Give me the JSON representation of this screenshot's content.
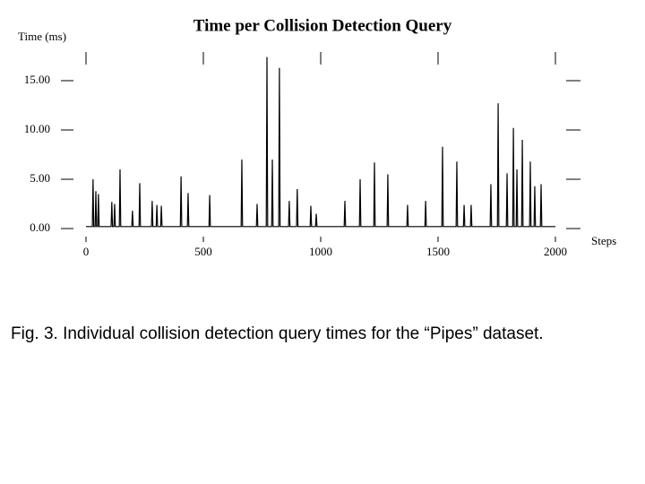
{
  "chart_data": {
    "type": "line",
    "title": "Time per Collision Detection Query",
    "y_label": "Time (ms)",
    "x_label": "Steps",
    "caption": "Fig. 3. Individual collision detection query times for the “Pipes” dataset.",
    "color": "#000000",
    "xlim": [
      0,
      2000
    ],
    "xticks": [
      0,
      500,
      1000,
      1500,
      2000
    ],
    "ylim": [
      0,
      18
    ],
    "yticks": [
      {
        "value": 0,
        "label": "0.00"
      },
      {
        "value": 5,
        "label": "5.00"
      },
      {
        "value": 10,
        "label": "10.00"
      },
      {
        "value": 15,
        "label": "15.00"
      }
    ],
    "x": [
      0,
      27,
      30,
      33,
      39,
      42,
      45,
      50,
      53,
      56,
      107,
      110,
      113,
      119,
      122,
      125,
      142,
      145,
      148,
      195,
      198,
      201,
      226,
      229,
      232,
      279,
      282,
      285,
      299,
      302,
      305,
      318,
      321,
      324,
      402,
      405,
      408,
      432,
      435,
      438,
      524,
      527,
      530,
      661,
      664,
      667,
      726,
      729,
      732,
      768,
      771,
      774,
      791,
      794,
      797,
      821,
      824,
      827,
      863,
      866,
      869,
      897,
      900,
      903,
      955,
      958,
      961,
      978,
      981,
      984,
      1100,
      1103,
      1106,
      1165,
      1168,
      1171,
      1226,
      1229,
      1232,
      1283,
      1286,
      1289,
      1367,
      1370,
      1373,
      1444,
      1447,
      1450,
      1516,
      1519,
      1522,
      1577,
      1580,
      1583,
      1608,
      1611,
      1614,
      1638,
      1641,
      1644,
      1722,
      1725,
      1728,
      1753,
      1756,
      1759,
      1791,
      1794,
      1797,
      1818,
      1821,
      1824,
      1833,
      1836,
      1839,
      1856,
      1859,
      1862,
      1890,
      1893,
      1896,
      1909,
      1912,
      1915,
      1936,
      1939,
      1942,
      2000
    ],
    "values": [
      0.2,
      0.2,
      5.0,
      0.2,
      0.2,
      3.8,
      0.2,
      0.2,
      3.5,
      0.2,
      0.2,
      2.7,
      0.2,
      0.2,
      2.5,
      0.2,
      0.2,
      6.0,
      0.2,
      0.2,
      1.8,
      0.2,
      0.2,
      4.6,
      0.2,
      0.2,
      2.8,
      0.2,
      0.2,
      2.4,
      0.2,
      0.2,
      2.3,
      0.2,
      0.2,
      5.3,
      0.2,
      0.2,
      3.6,
      0.2,
      0.2,
      3.4,
      0.2,
      0.2,
      7.0,
      0.2,
      0.2,
      2.5,
      0.2,
      0.2,
      17.4,
      0.2,
      0.2,
      7.0,
      0.2,
      0.2,
      16.3,
      0.2,
      0.2,
      2.8,
      0.2,
      0.2,
      4.0,
      0.2,
      0.2,
      2.3,
      0.2,
      0.2,
      1.5,
      0.2,
      0.2,
      2.8,
      0.2,
      0.2,
      5.0,
      0.2,
      0.2,
      6.7,
      0.2,
      0.2,
      5.5,
      0.2,
      0.2,
      2.4,
      0.2,
      0.2,
      2.8,
      0.2,
      0.2,
      8.3,
      0.2,
      0.2,
      6.8,
      0.2,
      0.2,
      2.4,
      0.2,
      0.2,
      2.4,
      0.2,
      0.2,
      4.5,
      0.2,
      0.2,
      12.7,
      0.2,
      0.2,
      5.6,
      0.2,
      0.2,
      10.2,
      0.2,
      0.2,
      6.0,
      0.2,
      0.2,
      9.0,
      0.2,
      0.2,
      6.8,
      0.2,
      0.2,
      4.3,
      0.2,
      0.2,
      4.5,
      0.2,
      0.2
    ]
  }
}
